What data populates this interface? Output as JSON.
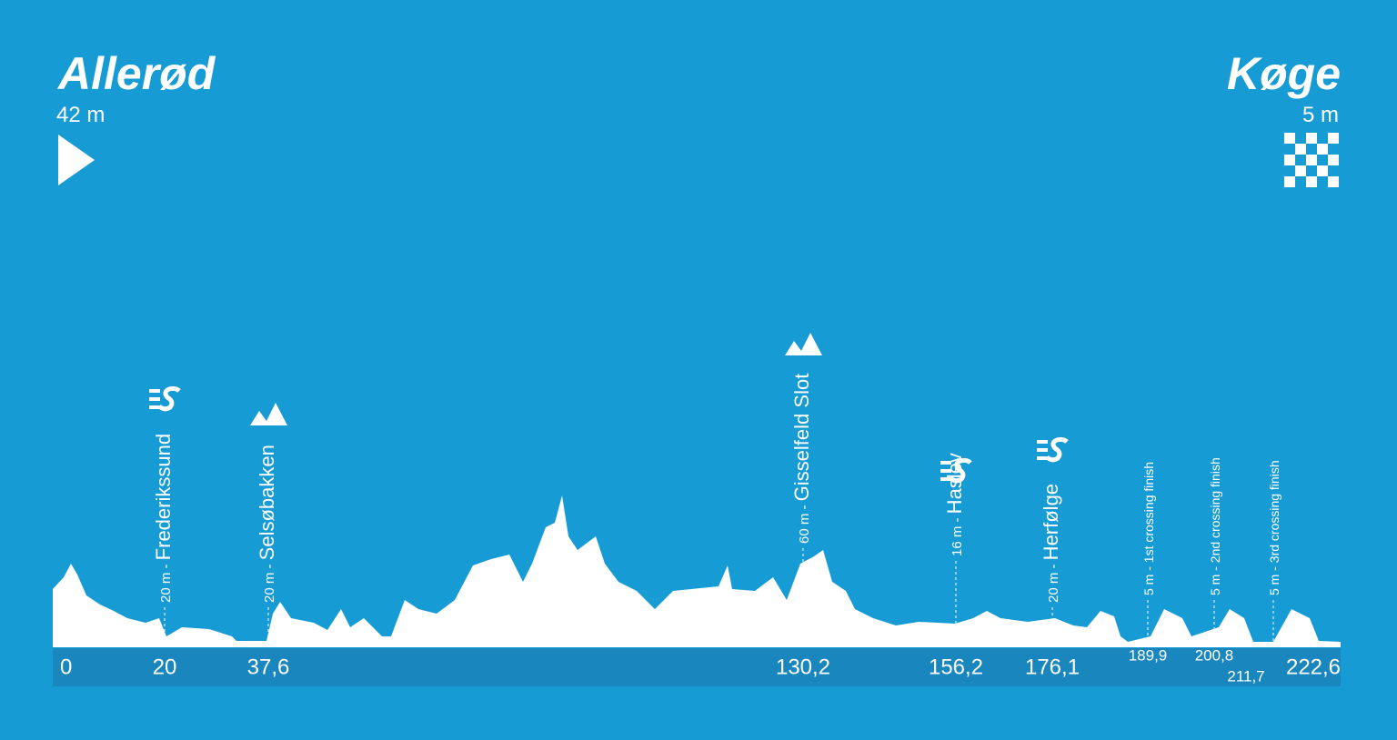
{
  "start": {
    "name": "Allerød",
    "altitude": "42 m"
  },
  "finish": {
    "name": "Køge",
    "altitude": "5 m"
  },
  "points": [
    {
      "prefix": "20 m - ",
      "name": "Frederikssund",
      "icon": "sprint"
    },
    {
      "prefix": "20 m - ",
      "name": "Selsøbakken",
      "icon": "climb"
    },
    {
      "prefix": "60 m - ",
      "name": "Gisselfeld Slot",
      "icon": "climb"
    },
    {
      "prefix": "16 m - ",
      "name": "Haslev",
      "icon": "sprint"
    },
    {
      "prefix": "20 m - ",
      "name": "Herfølge",
      "icon": "sprint"
    },
    {
      "prefix": "5 m - 1st crossing finish"
    },
    {
      "prefix": "5 m - 2nd crossing finish"
    },
    {
      "prefix": "5 m - 3rd crossing finish"
    }
  ],
  "km_labels": [
    "0",
    "20",
    "37,6",
    "130,2",
    "156,2",
    "176,1",
    "189,9",
    "200,8",
    "211,7",
    "222,6"
  ]
}
